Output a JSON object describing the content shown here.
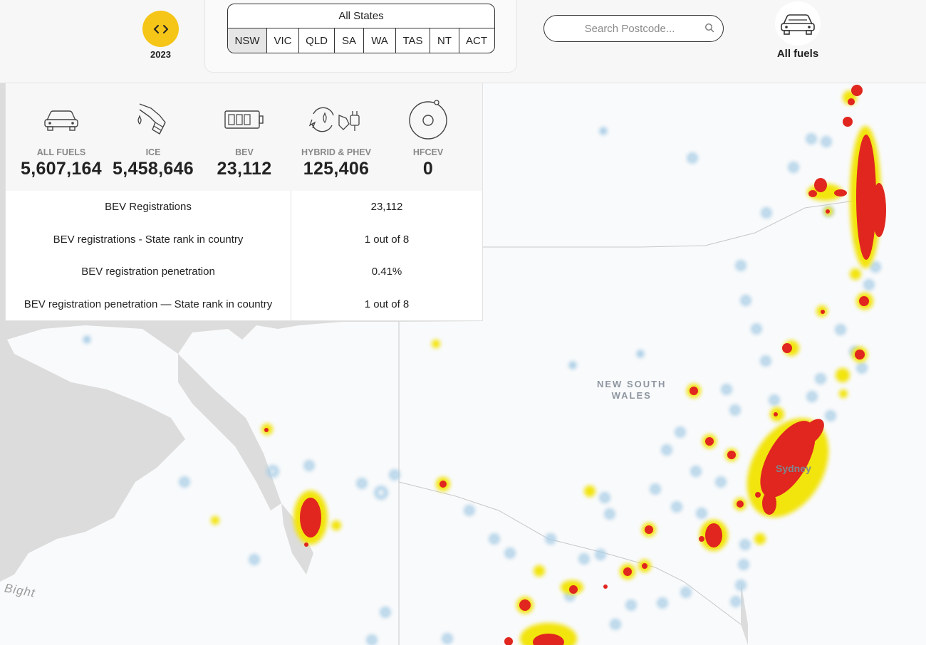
{
  "header": {
    "year": "2023",
    "all_states_label": "All States",
    "states": [
      "NSW",
      "VIC",
      "QLD",
      "SA",
      "WA",
      "TAS",
      "NT",
      "ACT"
    ],
    "active_state": "NSW",
    "search_placeholder": "Search Postcode...",
    "fuel_filter_label": "All fuels",
    "accent_color": "#f5c518"
  },
  "metrics": [
    {
      "label": "ALL FUELS",
      "value": "5,607,164",
      "icon": "car-icon"
    },
    {
      "label": "ICE",
      "value": "5,458,646",
      "icon": "fuel-pump-icon"
    },
    {
      "label": "BEV",
      "value": "23,112",
      "icon": "battery-icon"
    },
    {
      "label": "HYBRID & PHEV",
      "value": "125,406",
      "icon": "hybrid-plug-icon"
    },
    {
      "label": "HFCEV",
      "value": "0",
      "icon": "hydrogen-icon"
    }
  ],
  "stats_table": [
    {
      "label": "BEV Registrations",
      "value": "23,112"
    },
    {
      "label": "BEV registrations - State rank in country",
      "value": "1 out of 8"
    },
    {
      "label": "BEV registration penetration",
      "value": "0.41%"
    },
    {
      "label": "BEV registration penetration — State rank in country",
      "value": "1 out of 8"
    }
  ],
  "map": {
    "labels": {
      "nsw": "NEW SOUTH\nWALES",
      "sydney": "Sydney",
      "bight": "Bight"
    },
    "heat_colors": {
      "high": "#e0261e",
      "mid": "#f2e40c",
      "low": "#a8cde6"
    }
  }
}
